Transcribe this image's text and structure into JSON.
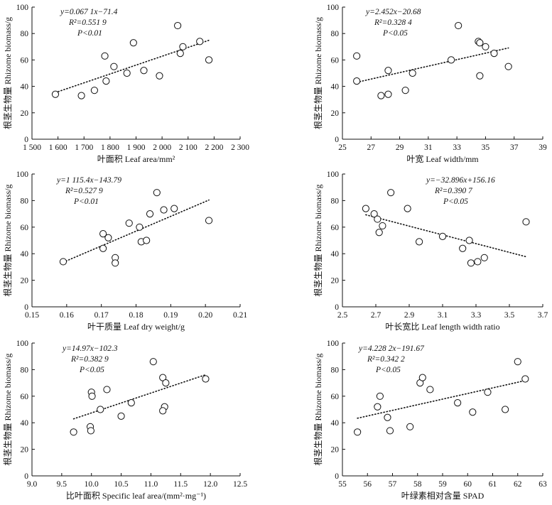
{
  "chart_data": [
    {
      "type": "scatter",
      "xlabel": "叶面积 Leaf area/mm²",
      "ylabel": "根茎生物量 Rhizome biomass/g",
      "xlim": [
        1500,
        2300
      ],
      "ylim": [
        0,
        100
      ],
      "xticks": [
        1500,
        1600,
        1700,
        1800,
        1900,
        2000,
        2100,
        2200,
        2300
      ],
      "xtick_labels": [
        "1 500",
        "1 600",
        "1 700",
        "1 800",
        "1 900",
        "2 000",
        "2 100",
        "2 200",
        "2 300"
      ],
      "yticks": [
        0,
        20,
        40,
        60,
        80,
        100
      ],
      "annotation": {
        "equation": "y=0.067 1x−71.4",
        "r2": "R²=0.551 9",
        "p": "P<0.01"
      },
      "trendline": {
        "slope": 0.0671,
        "intercept": -71.4,
        "x_range": [
          1590,
          2180
        ]
      },
      "points": [
        [
          1590,
          34
        ],
        [
          1690,
          33
        ],
        [
          1740,
          37
        ],
        [
          1780,
          63
        ],
        [
          1785,
          44
        ],
        [
          1815,
          55
        ],
        [
          1865,
          50
        ],
        [
          1890,
          73
        ],
        [
          1930,
          52
        ],
        [
          1990,
          48
        ],
        [
          2060,
          86
        ],
        [
          2070,
          65
        ],
        [
          2080,
          70
        ],
        [
          2145,
          74
        ],
        [
          2180,
          60
        ]
      ]
    },
    {
      "type": "scatter",
      "xlabel": "叶宽 Leaf width/mm",
      "ylabel": "根茎生物量 Rhizome biomass/g",
      "xlim": [
        25,
        39
      ],
      "ylim": [
        0,
        100
      ],
      "xticks": [
        25,
        27,
        29,
        31,
        33,
        35,
        37,
        39
      ],
      "xtick_labels": [
        "25",
        "27",
        "29",
        "31",
        "33",
        "35",
        "37",
        "39"
      ],
      "yticks": [
        0,
        20,
        40,
        60,
        80,
        100
      ],
      "annotation": {
        "equation": "y=2.452x−20.68",
        "r2": "R²=0.328 4",
        "p": "P<0.05"
      },
      "trendline": {
        "slope": 2.452,
        "intercept": -20.68,
        "x_range": [
          26,
          36.6
        ]
      },
      "points": [
        [
          26,
          63
        ],
        [
          26,
          44
        ],
        [
          27.7,
          33
        ],
        [
          28.2,
          52
        ],
        [
          28.2,
          34
        ],
        [
          29.4,
          37
        ],
        [
          29.9,
          50
        ],
        [
          32.6,
          60
        ],
        [
          33.1,
          86
        ],
        [
          34.5,
          74
        ],
        [
          34.6,
          73
        ],
        [
          34.6,
          48
        ],
        [
          35,
          70
        ],
        [
          35.6,
          65
        ],
        [
          36.6,
          55
        ]
      ]
    },
    {
      "type": "scatter",
      "xlabel": "叶干质量 Leaf dry weight/g",
      "ylabel": "根茎生物量 Rhizome biomass/g",
      "xlim": [
        0.15,
        0.21
      ],
      "ylim": [
        0,
        100
      ],
      "xticks": [
        0.15,
        0.16,
        0.17,
        0.18,
        0.19,
        0.2,
        0.21
      ],
      "xtick_labels": [
        "0.15",
        "0.16",
        "0.17",
        "0.18",
        "0.19",
        "0.20",
        "0.21"
      ],
      "yticks": [
        0,
        20,
        40,
        60,
        80,
        100
      ],
      "annotation": {
        "equation": "y=1 115.4x−143.79",
        "r2": "R²=0.527 9",
        "p": "P<0.01"
      },
      "trendline": {
        "slope": 1115.4,
        "intercept": -143.79,
        "x_range": [
          0.159,
          0.201
        ]
      },
      "points": [
        [
          0.159,
          34
        ],
        [
          0.1705,
          55
        ],
        [
          0.1705,
          44
        ],
        [
          0.172,
          52
        ],
        [
          0.174,
          37
        ],
        [
          0.174,
          33
        ],
        [
          0.178,
          63
        ],
        [
          0.181,
          60
        ],
        [
          0.1815,
          49
        ],
        [
          0.183,
          50
        ],
        [
          0.184,
          70
        ],
        [
          0.186,
          86
        ],
        [
          0.188,
          73
        ],
        [
          0.191,
          74
        ],
        [
          0.201,
          65
        ]
      ]
    },
    {
      "type": "scatter",
      "xlabel": "叶长宽比 Leaf length width ratio",
      "ylabel": "根茎生物量 Rhizome biomass/g",
      "xlim": [
        2.5,
        3.7
      ],
      "ylim": [
        0,
        100
      ],
      "xticks": [
        2.5,
        2.7,
        2.9,
        3.1,
        3.3,
        3.5,
        3.7
      ],
      "xtick_labels": [
        "2.5",
        "2.7",
        "2.9",
        "3.1",
        "3.3",
        "3.5",
        "3.7"
      ],
      "yticks": [
        0,
        20,
        40,
        60,
        80,
        100
      ],
      "annotation": {
        "equation": "y=−32.896x+156.16",
        "r2": "R²=0.390 7",
        "p": "P<0.05"
      },
      "trendline": {
        "slope": -32.896,
        "intercept": 156.16,
        "x_range": [
          2.64,
          3.6
        ]
      },
      "points": [
        [
          2.64,
          74
        ],
        [
          2.69,
          70
        ],
        [
          2.71,
          66
        ],
        [
          2.72,
          56
        ],
        [
          2.74,
          61
        ],
        [
          2.79,
          86
        ],
        [
          2.89,
          74
        ],
        [
          2.96,
          49
        ],
        [
          3.1,
          53
        ],
        [
          3.22,
          44
        ],
        [
          3.26,
          50
        ],
        [
          3.27,
          33
        ],
        [
          3.31,
          34
        ],
        [
          3.35,
          37
        ],
        [
          3.6,
          64
        ]
      ]
    },
    {
      "type": "scatter",
      "xlabel": "比叶面积 Specific leaf area/(mm²·mg⁻¹)",
      "ylabel": "根茎生物量 Rhizome biomass/g",
      "xlim": [
        9.0,
        12.5
      ],
      "ylim": [
        0,
        100
      ],
      "xticks": [
        9.0,
        9.5,
        10.0,
        10.5,
        11.0,
        11.5,
        12.0,
        12.5
      ],
      "xtick_labels": [
        "9.0",
        "9.5",
        "10.0",
        "10.5",
        "11.0",
        "11.5",
        "12.0",
        "12.5"
      ],
      "yticks": [
        0,
        20,
        40,
        60,
        80,
        100
      ],
      "annotation": {
        "equation": "y=14.97x−102.3",
        "r2": "R²=0.382 9",
        "p": "P<0.05"
      },
      "trendline": {
        "slope": 14.97,
        "intercept": -102.3,
        "x_range": [
          9.7,
          11.92
        ]
      },
      "points": [
        [
          9.7,
          33
        ],
        [
          9.98,
          37
        ],
        [
          9.99,
          34
        ],
        [
          10.0,
          63
        ],
        [
          10.01,
          60
        ],
        [
          10.15,
          50
        ],
        [
          10.26,
          65
        ],
        [
          10.5,
          45
        ],
        [
          10.67,
          55
        ],
        [
          11.04,
          86
        ],
        [
          11.2,
          74
        ],
        [
          11.23,
          52
        ],
        [
          11.25,
          70
        ],
        [
          11.2,
          49
        ],
        [
          11.92,
          73
        ]
      ]
    },
    {
      "type": "scatter",
      "xlabel": "叶绿素相对含量 SPAD",
      "ylabel": "根茎生物量 Rhizome biomass/g",
      "xlim": [
        55,
        63
      ],
      "ylim": [
        0,
        100
      ],
      "xticks": [
        55,
        56,
        57,
        58,
        59,
        60,
        61,
        62,
        63
      ],
      "xtick_labels": [
        "55",
        "56",
        "57",
        "58",
        "59",
        "60",
        "61",
        "62",
        "63"
      ],
      "yticks": [
        0,
        20,
        40,
        60,
        80,
        100
      ],
      "annotation": {
        "equation": "y=4.228 2x−191.67",
        "r2": "R²=0.342 2",
        "p": "P<0.05"
      },
      "trendline": {
        "slope": 4.2282,
        "intercept": -191.67,
        "x_range": [
          55.6,
          62.3
        ]
      },
      "points": [
        [
          55.6,
          33
        ],
        [
          56.4,
          52
        ],
        [
          56.5,
          60
        ],
        [
          56.8,
          44
        ],
        [
          56.9,
          34
        ],
        [
          57.7,
          37
        ],
        [
          58.1,
          70
        ],
        [
          58.2,
          74
        ],
        [
          58.5,
          65
        ],
        [
          59.6,
          55
        ],
        [
          60.2,
          48
        ],
        [
          60.8,
          63
        ],
        [
          61.5,
          50
        ],
        [
          62.0,
          86
        ],
        [
          62.3,
          73
        ]
      ]
    }
  ]
}
